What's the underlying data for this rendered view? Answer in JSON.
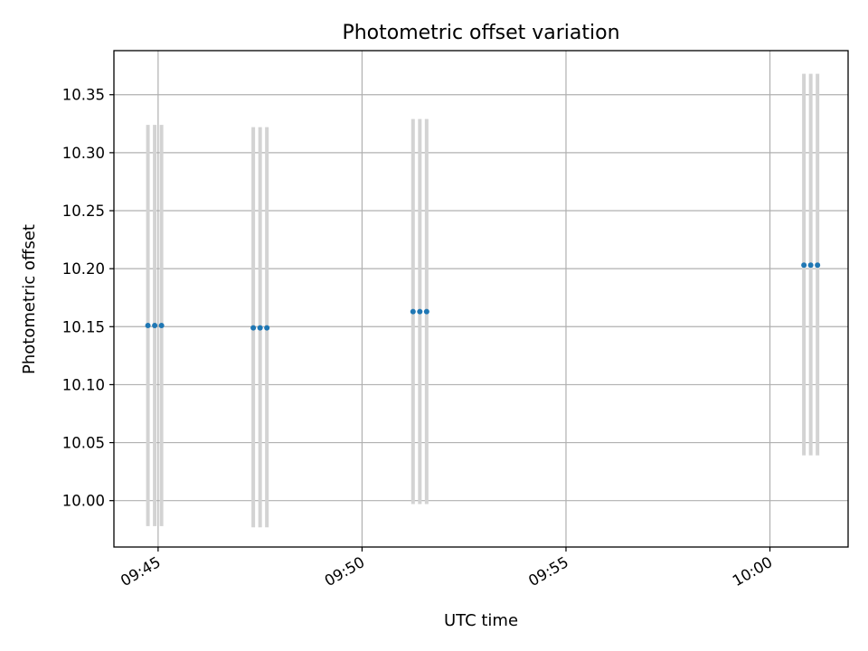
{
  "chart_data": {
    "type": "scatter",
    "title": "Photometric offset variation",
    "xlabel": "UTC time",
    "ylabel": "Photometric offset",
    "xlim": [
      "09:43:55",
      "10:01:55"
    ],
    "ylim": [
      9.96,
      10.388
    ],
    "grid": true,
    "x_ticks": [
      "09:45",
      "09:50",
      "09:55",
      "10:00"
    ],
    "y_ticks": [
      "10.00",
      "10.05",
      "10.10",
      "10.15",
      "10.20",
      "10.25",
      "10.30",
      "10.35"
    ],
    "series": [
      {
        "marker_color": "#1f77b4",
        "errorbar_color": "#d3d3d3",
        "points": [
          {
            "x": "09:44:45",
            "y": 10.151,
            "ylow": 9.978,
            "yhigh": 10.324
          },
          {
            "x": "09:44:55",
            "y": 10.151,
            "ylow": 9.978,
            "yhigh": 10.324
          },
          {
            "x": "09:45:05",
            "y": 10.151,
            "ylow": 9.978,
            "yhigh": 10.324
          },
          {
            "x": "09:47:20",
            "y": 10.149,
            "ylow": 9.977,
            "yhigh": 10.322
          },
          {
            "x": "09:47:30",
            "y": 10.149,
            "ylow": 9.977,
            "yhigh": 10.322
          },
          {
            "x": "09:47:40",
            "y": 10.149,
            "ylow": 9.977,
            "yhigh": 10.322
          },
          {
            "x": "09:51:15",
            "y": 10.163,
            "ylow": 9.997,
            "yhigh": 10.329
          },
          {
            "x": "09:51:25",
            "y": 10.163,
            "ylow": 9.997,
            "yhigh": 10.329
          },
          {
            "x": "09:51:35",
            "y": 10.163,
            "ylow": 9.997,
            "yhigh": 10.329
          },
          {
            "x": "10:00:50",
            "y": 10.203,
            "ylow": 10.039,
            "yhigh": 10.368
          },
          {
            "x": "10:01:00",
            "y": 10.203,
            "ylow": 10.039,
            "yhigh": 10.368
          },
          {
            "x": "10:01:10",
            "y": 10.203,
            "ylow": 10.039,
            "yhigh": 10.368
          }
        ]
      }
    ]
  }
}
